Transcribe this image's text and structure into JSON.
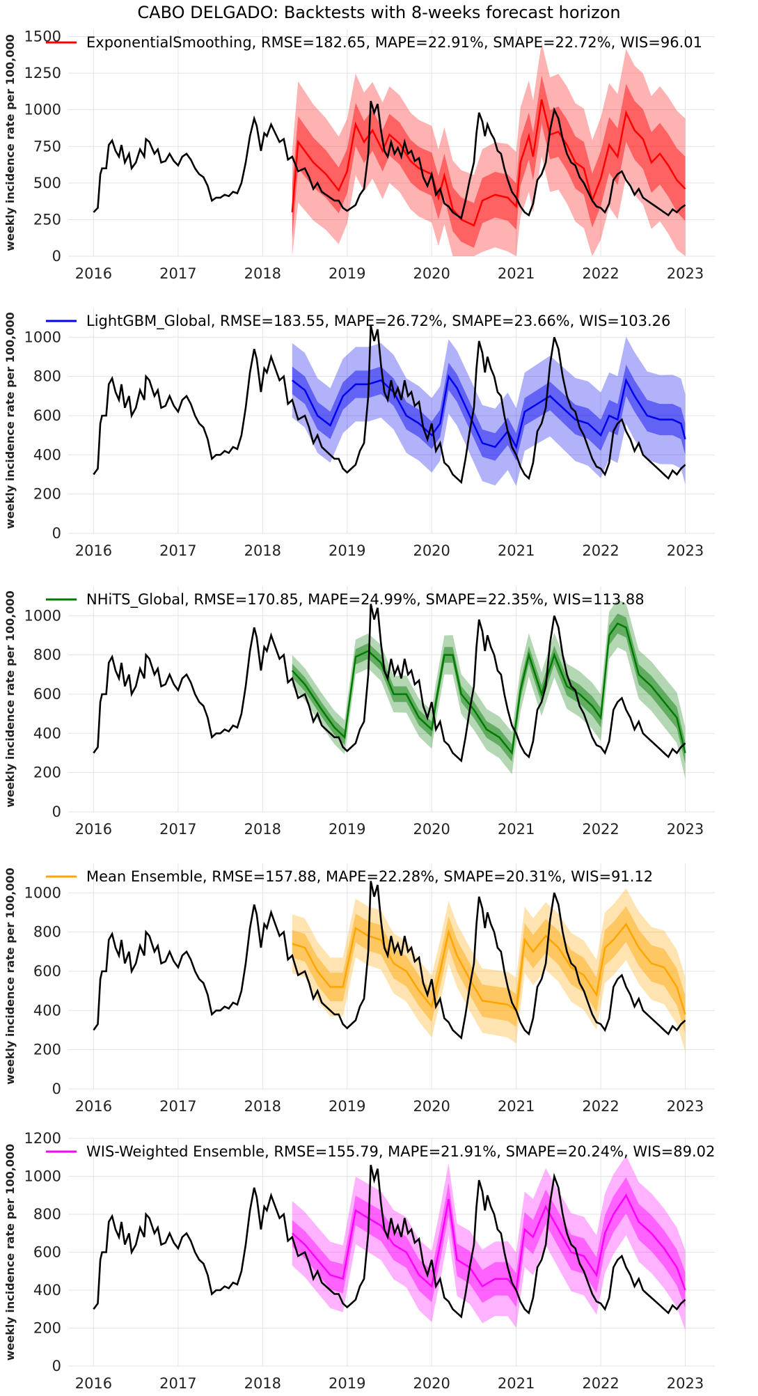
{
  "figure_title": "CABO DELGADO: Backtests with 8-weeks forecast horizon",
  "colors": {
    "actual": "#000000",
    "grid": "#e3e3e3"
  },
  "chart_data": [
    {
      "type": "line",
      "ylabel": "weekly incidence rate per 100,000",
      "legend": "ExponentialSmoothing, RMSE=182.65, MAPE=22.91%, SMAPE=22.72%, WIS=96.01",
      "color": "#ff0000",
      "ylim": [
        0,
        1550
      ],
      "yticks": [
        0,
        250,
        500,
        750,
        1000,
        1250,
        1500
      ],
      "xlim": [
        2015.7,
        2023.35
      ],
      "xticks": [
        2016,
        2017,
        2018,
        2019,
        2020,
        2021,
        2022,
        2023
      ],
      "forecast_median": [
        [
          2018.35,
          300
        ],
        [
          2018.42,
          780
        ],
        [
          2018.6,
          640
        ],
        [
          2018.75,
          560
        ],
        [
          2018.9,
          450
        ],
        [
          2019.0,
          580
        ],
        [
          2019.1,
          900
        ],
        [
          2019.2,
          780
        ],
        [
          2019.3,
          860
        ],
        [
          2019.42,
          720
        ],
        [
          2019.5,
          830
        ],
        [
          2019.62,
          770
        ],
        [
          2019.75,
          650
        ],
        [
          2019.85,
          600
        ],
        [
          2020.0,
          560
        ],
        [
          2020.08,
          400
        ],
        [
          2020.15,
          550
        ],
        [
          2020.25,
          320
        ],
        [
          2020.35,
          250
        ],
        [
          2020.5,
          210
        ],
        [
          2020.6,
          380
        ],
        [
          2020.75,
          420
        ],
        [
          2020.9,
          400
        ],
        [
          2021.0,
          340
        ],
        [
          2021.05,
          640
        ],
        [
          2021.15,
          820
        ],
        [
          2021.2,
          680
        ],
        [
          2021.3,
          1070
        ],
        [
          2021.4,
          830
        ],
        [
          2021.5,
          850
        ],
        [
          2021.6,
          760
        ],
        [
          2021.7,
          640
        ],
        [
          2021.8,
          600
        ],
        [
          2021.9,
          380
        ],
        [
          2022.0,
          530
        ],
        [
          2022.1,
          760
        ],
        [
          2022.2,
          680
        ],
        [
          2022.3,
          980
        ],
        [
          2022.4,
          860
        ],
        [
          2022.5,
          800
        ],
        [
          2022.6,
          640
        ],
        [
          2022.7,
          700
        ],
        [
          2022.8,
          620
        ],
        [
          2022.9,
          520
        ],
        [
          2023.0,
          460
        ]
      ],
      "inner_band": [
        180,
        140,
        150,
        160,
        190,
        220
      ],
      "outer_band": [
        420,
        330,
        330,
        380,
        420,
        480
      ]
    },
    {
      "type": "line",
      "ylabel": "weekly incidence rate per 100,000",
      "legend": "LightGBM_Global, RMSE=183.55, MAPE=26.72%, SMAPE=23.66%, WIS=103.26",
      "color": "#0000ee",
      "ylim": [
        0,
        1150
      ],
      "yticks": [
        0,
        200,
        400,
        600,
        800,
        1000
      ],
      "xlim": [
        2015.7,
        2023.35
      ],
      "xticks": [
        2016,
        2017,
        2018,
        2019,
        2020,
        2021,
        2022,
        2023
      ],
      "forecast_median": [
        [
          2018.35,
          780
        ],
        [
          2018.5,
          730
        ],
        [
          2018.65,
          600
        ],
        [
          2018.8,
          550
        ],
        [
          2018.95,
          700
        ],
        [
          2019.1,
          760
        ],
        [
          2019.25,
          760
        ],
        [
          2019.4,
          780
        ],
        [
          2019.55,
          720
        ],
        [
          2019.7,
          600
        ],
        [
          2019.85,
          560
        ],
        [
          2020.0,
          500
        ],
        [
          2020.1,
          560
        ],
        [
          2020.2,
          800
        ],
        [
          2020.3,
          740
        ],
        [
          2020.45,
          600
        ],
        [
          2020.6,
          460
        ],
        [
          2020.75,
          440
        ],
        [
          2020.9,
          520
        ],
        [
          2021.0,
          440
        ],
        [
          2021.1,
          620
        ],
        [
          2021.25,
          660
        ],
        [
          2021.4,
          700
        ],
        [
          2021.55,
          640
        ],
        [
          2021.7,
          580
        ],
        [
          2021.85,
          560
        ],
        [
          2022.0,
          500
        ],
        [
          2022.1,
          600
        ],
        [
          2022.2,
          580
        ],
        [
          2022.3,
          780
        ],
        [
          2022.4,
          700
        ],
        [
          2022.55,
          600
        ],
        [
          2022.7,
          580
        ],
        [
          2022.85,
          580
        ],
        [
          2022.95,
          560
        ],
        [
          2023.0,
          480
        ]
      ],
      "inner_band": [
        70,
        70,
        70,
        70,
        80,
        80
      ],
      "outer_band": [
        190,
        190,
        190,
        200,
        220,
        230
      ]
    },
    {
      "type": "line",
      "ylabel": "weekly incidence rate per 100,000",
      "legend": "NHiTS_Global, RMSE=170.85, MAPE=24.99%, SMAPE=22.35%, WIS=113.88",
      "color": "#007a00",
      "ylim": [
        0,
        1150
      ],
      "yticks": [
        0,
        200,
        400,
        600,
        800,
        1000
      ],
      "xlim": [
        2015.7,
        2023.35
      ],
      "xticks": [
        2016,
        2017,
        2018,
        2019,
        2020,
        2021,
        2022,
        2023
      ],
      "forecast_median": [
        [
          2018.35,
          720
        ],
        [
          2018.5,
          650
        ],
        [
          2018.7,
          520
        ],
        [
          2018.85,
          430
        ],
        [
          2018.97,
          380
        ],
        [
          2019.1,
          790
        ],
        [
          2019.25,
          820
        ],
        [
          2019.4,
          760
        ],
        [
          2019.55,
          600
        ],
        [
          2019.7,
          600
        ],
        [
          2019.85,
          480
        ],
        [
          2020.0,
          420
        ],
        [
          2020.05,
          560
        ],
        [
          2020.15,
          800
        ],
        [
          2020.25,
          800
        ],
        [
          2020.35,
          600
        ],
        [
          2020.5,
          520
        ],
        [
          2020.65,
          420
        ],
        [
          2020.8,
          380
        ],
        [
          2020.95,
          300
        ],
        [
          2021.05,
          620
        ],
        [
          2021.15,
          800
        ],
        [
          2021.3,
          600
        ],
        [
          2021.45,
          800
        ],
        [
          2021.6,
          640
        ],
        [
          2021.75,
          600
        ],
        [
          2021.9,
          540
        ],
        [
          2022.0,
          480
        ],
        [
          2022.1,
          900
        ],
        [
          2022.2,
          960
        ],
        [
          2022.3,
          940
        ],
        [
          2022.45,
          700
        ],
        [
          2022.6,
          640
        ],
        [
          2022.75,
          560
        ],
        [
          2022.9,
          480
        ],
        [
          2023.0,
          300
        ]
      ],
      "inner_band": [
        35,
        40,
        40,
        45,
        50,
        55
      ],
      "outer_band": [
        80,
        90,
        100,
        110,
        120,
        130
      ]
    },
    {
      "type": "line",
      "ylabel": "weekly incidence rate per 100,000",
      "legend": "Mean Ensemble, RMSE=157.88, MAPE=22.28%, SMAPE=20.31%, WIS=91.12",
      "color": "#ffa500",
      "ylim": [
        0,
        1150
      ],
      "yticks": [
        0,
        200,
        400,
        600,
        800,
        1000
      ],
      "xlim": [
        2015.7,
        2023.35
      ],
      "xticks": [
        2016,
        2017,
        2018,
        2019,
        2020,
        2021,
        2022,
        2023
      ],
      "forecast_median": [
        [
          2018.35,
          740
        ],
        [
          2018.5,
          720
        ],
        [
          2018.65,
          600
        ],
        [
          2018.8,
          520
        ],
        [
          2018.95,
          520
        ],
        [
          2019.1,
          820
        ],
        [
          2019.25,
          780
        ],
        [
          2019.4,
          760
        ],
        [
          2019.55,
          640
        ],
        [
          2019.7,
          600
        ],
        [
          2019.85,
          500
        ],
        [
          2020.0,
          420
        ],
        [
          2020.1,
          600
        ],
        [
          2020.2,
          800
        ],
        [
          2020.3,
          680
        ],
        [
          2020.45,
          560
        ],
        [
          2020.6,
          450
        ],
        [
          2020.75,
          440
        ],
        [
          2020.9,
          430
        ],
        [
          2021.0,
          400
        ],
        [
          2021.1,
          760
        ],
        [
          2021.2,
          700
        ],
        [
          2021.35,
          780
        ],
        [
          2021.5,
          720
        ],
        [
          2021.65,
          620
        ],
        [
          2021.8,
          580
        ],
        [
          2021.95,
          480
        ],
        [
          2022.05,
          720
        ],
        [
          2022.15,
          760
        ],
        [
          2022.3,
          840
        ],
        [
          2022.45,
          720
        ],
        [
          2022.6,
          640
        ],
        [
          2022.75,
          620
        ],
        [
          2022.9,
          520
        ],
        [
          2023.0,
          380
        ]
      ],
      "inner_band": [
        70,
        75,
        80,
        85,
        90,
        95
      ],
      "outer_band": [
        150,
        150,
        160,
        170,
        180,
        190
      ]
    },
    {
      "type": "line",
      "ylabel": "weekly incidence rate per 100,000",
      "legend": "WIS-Weighted Ensemble, RMSE=155.79, MAPE=21.91%, SMAPE=20.24%, WIS=89.02",
      "color": "#ff00ff",
      "ylim": [
        0,
        1200
      ],
      "yticks": [
        0,
        200,
        400,
        600,
        800,
        1000,
        1200
      ],
      "xlim": [
        2015.7,
        2023.35
      ],
      "xticks": [
        2016,
        2017,
        2018,
        2019,
        2020,
        2021,
        2022,
        2023
      ],
      "forecast_median": [
        [
          2018.35,
          700
        ],
        [
          2018.5,
          640
        ],
        [
          2018.65,
          560
        ],
        [
          2018.8,
          480
        ],
        [
          2018.95,
          460
        ],
        [
          2019.1,
          820
        ],
        [
          2019.25,
          780
        ],
        [
          2019.4,
          740
        ],
        [
          2019.55,
          640
        ],
        [
          2019.7,
          600
        ],
        [
          2019.85,
          480
        ],
        [
          2020.0,
          420
        ],
        [
          2020.1,
          640
        ],
        [
          2020.2,
          880
        ],
        [
          2020.3,
          560
        ],
        [
          2020.45,
          520
        ],
        [
          2020.6,
          420
        ],
        [
          2020.75,
          460
        ],
        [
          2020.9,
          460
        ],
        [
          2021.0,
          400
        ],
        [
          2021.1,
          720
        ],
        [
          2021.2,
          680
        ],
        [
          2021.35,
          840
        ],
        [
          2021.5,
          720
        ],
        [
          2021.65,
          600
        ],
        [
          2021.8,
          580
        ],
        [
          2021.95,
          480
        ],
        [
          2022.05,
          700
        ],
        [
          2022.15,
          800
        ],
        [
          2022.3,
          900
        ],
        [
          2022.45,
          760
        ],
        [
          2022.6,
          700
        ],
        [
          2022.75,
          620
        ],
        [
          2022.9,
          520
        ],
        [
          2023.0,
          400
        ]
      ],
      "inner_band": [
        70,
        80,
        85,
        90,
        95,
        95
      ],
      "outer_band": [
        170,
        180,
        190,
        200,
        210,
        210
      ]
    }
  ],
  "actual_series": [
    [
      2016.0,
      300
    ],
    [
      2016.05,
      330
    ],
    [
      2016.08,
      560
    ],
    [
      2016.1,
      600
    ],
    [
      2016.15,
      600
    ],
    [
      2016.18,
      760
    ],
    [
      2016.22,
      790
    ],
    [
      2016.26,
      720
    ],
    [
      2016.3,
      680
    ],
    [
      2016.33,
      760
    ],
    [
      2016.37,
      640
    ],
    [
      2016.42,
      700
    ],
    [
      2016.45,
      600
    ],
    [
      2016.5,
      640
    ],
    [
      2016.55,
      730
    ],
    [
      2016.6,
      680
    ],
    [
      2016.62,
      800
    ],
    [
      2016.66,
      780
    ],
    [
      2016.72,
      700
    ],
    [
      2016.76,
      730
    ],
    [
      2016.8,
      640
    ],
    [
      2016.85,
      650
    ],
    [
      2016.9,
      700
    ],
    [
      2016.95,
      650
    ],
    [
      2017.0,
      620
    ],
    [
      2017.05,
      680
    ],
    [
      2017.1,
      700
    ],
    [
      2017.15,
      660
    ],
    [
      2017.2,
      600
    ],
    [
      2017.25,
      560
    ],
    [
      2017.3,
      540
    ],
    [
      2017.35,
      480
    ],
    [
      2017.4,
      380
    ],
    [
      2017.45,
      400
    ],
    [
      2017.5,
      400
    ],
    [
      2017.55,
      420
    ],
    [
      2017.6,
      410
    ],
    [
      2017.65,
      440
    ],
    [
      2017.7,
      430
    ],
    [
      2017.75,
      500
    ],
    [
      2017.8,
      640
    ],
    [
      2017.85,
      820
    ],
    [
      2017.9,
      940
    ],
    [
      2017.93,
      890
    ],
    [
      2017.98,
      720
    ],
    [
      2018.02,
      840
    ],
    [
      2018.05,
      820
    ],
    [
      2018.1,
      900
    ],
    [
      2018.15,
      840
    ],
    [
      2018.2,
      780
    ],
    [
      2018.25,
      800
    ],
    [
      2018.3,
      660
    ],
    [
      2018.35,
      680
    ],
    [
      2018.42,
      580
    ],
    [
      2018.5,
      600
    ],
    [
      2018.55,
      540
    ],
    [
      2018.6,
      460
    ],
    [
      2018.65,
      500
    ],
    [
      2018.7,
      440
    ],
    [
      2018.75,
      420
    ],
    [
      2018.8,
      400
    ],
    [
      2018.85,
      380
    ],
    [
      2018.9,
      380
    ],
    [
      2018.95,
      330
    ],
    [
      2019.0,
      310
    ],
    [
      2019.05,
      330
    ],
    [
      2019.1,
      350
    ],
    [
      2019.15,
      420
    ],
    [
      2019.2,
      460
    ],
    [
      2019.25,
      700
    ],
    [
      2019.28,
      1060
    ],
    [
      2019.32,
      980
    ],
    [
      2019.36,
      1040
    ],
    [
      2019.4,
      860
    ],
    [
      2019.44,
      720
    ],
    [
      2019.48,
      680
    ],
    [
      2019.52,
      780
    ],
    [
      2019.56,
      700
    ],
    [
      2019.6,
      740
    ],
    [
      2019.64,
      680
    ],
    [
      2019.68,
      780
    ],
    [
      2019.72,
      700
    ],
    [
      2019.76,
      720
    ],
    [
      2019.8,
      650
    ],
    [
      2019.85,
      670
    ],
    [
      2019.9,
      540
    ],
    [
      2019.95,
      480
    ],
    [
      2020.0,
      560
    ],
    [
      2020.05,
      420
    ],
    [
      2020.1,
      460
    ],
    [
      2020.15,
      360
    ],
    [
      2020.2,
      340
    ],
    [
      2020.25,
      300
    ],
    [
      2020.3,
      280
    ],
    [
      2020.35,
      260
    ],
    [
      2020.4,
      380
    ],
    [
      2020.45,
      520
    ],
    [
      2020.5,
      640
    ],
    [
      2020.53,
      840
    ],
    [
      2020.56,
      980
    ],
    [
      2020.6,
      920
    ],
    [
      2020.63,
      820
    ],
    [
      2020.66,
      900
    ],
    [
      2020.7,
      840
    ],
    [
      2020.74,
      800
    ],
    [
      2020.78,
      720
    ],
    [
      2020.82,
      700
    ],
    [
      2020.86,
      600
    ],
    [
      2020.9,
      520
    ],
    [
      2020.95,
      440
    ],
    [
      2021.0,
      400
    ],
    [
      2021.05,
      340
    ],
    [
      2021.1,
      300
    ],
    [
      2021.15,
      280
    ],
    [
      2021.2,
      360
    ],
    [
      2021.25,
      520
    ],
    [
      2021.3,
      560
    ],
    [
      2021.35,
      640
    ],
    [
      2021.4,
      860
    ],
    [
      2021.45,
      1000
    ],
    [
      2021.5,
      940
    ],
    [
      2021.55,
      800
    ],
    [
      2021.6,
      700
    ],
    [
      2021.65,
      640
    ],
    [
      2021.7,
      620
    ],
    [
      2021.75,
      540
    ],
    [
      2021.8,
      500
    ],
    [
      2021.85,
      440
    ],
    [
      2021.9,
      380
    ],
    [
      2021.95,
      340
    ],
    [
      2022.0,
      330
    ],
    [
      2022.05,
      300
    ],
    [
      2022.1,
      360
    ],
    [
      2022.15,
      520
    ],
    [
      2022.2,
      560
    ],
    [
      2022.25,
      580
    ],
    [
      2022.3,
      520
    ],
    [
      2022.35,
      480
    ],
    [
      2022.4,
      420
    ],
    [
      2022.45,
      460
    ],
    [
      2022.5,
      400
    ],
    [
      2022.55,
      380
    ],
    [
      2022.6,
      360
    ],
    [
      2022.65,
      340
    ],
    [
      2022.7,
      320
    ],
    [
      2022.75,
      300
    ],
    [
      2022.8,
      280
    ],
    [
      2022.85,
      320
    ],
    [
      2022.9,
      300
    ],
    [
      2022.95,
      330
    ],
    [
      2023.0,
      350
    ]
  ]
}
